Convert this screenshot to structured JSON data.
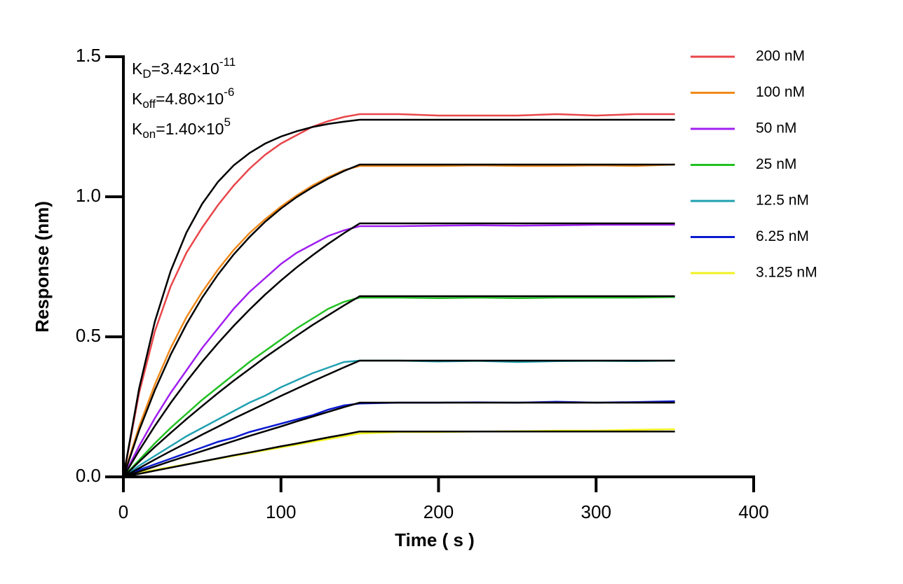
{
  "chart_data": {
    "type": "line",
    "annotations": [
      {
        "base": "K",
        "sub": "D",
        "text": "=3.42×10",
        "sup": "-11"
      },
      {
        "base": "K",
        "sub": "off",
        "text": "=4.80×10",
        "sup": "-6"
      },
      {
        "base": "K",
        "sub": "on",
        "text": "=1.40×10",
        "sup": "5"
      }
    ],
    "x_label": "Time ( s )",
    "y_label": "Response (nm)",
    "xlim": [
      0,
      400
    ],
    "xticks": [
      0,
      100,
      200,
      300,
      400
    ],
    "ylim": [
      0,
      1.5
    ],
    "yticks": [
      {
        "value": 0,
        "label": "0.0"
      },
      {
        "value": 0.5,
        "label": "0.5"
      },
      {
        "value": 1,
        "label": "1.0"
      },
      {
        "value": 1.5,
        "label": "1.5"
      }
    ],
    "legend": "right",
    "x": [
      0,
      10,
      20,
      30,
      40,
      50,
      60,
      70,
      80,
      90,
      100,
      110,
      120,
      130,
      140,
      150,
      175,
      200,
      225,
      250,
      275,
      300,
      325,
      350
    ],
    "series": [
      {
        "name": "200 nM",
        "color": "#e8464a",
        "values": [
          0,
          0.3,
          0.52,
          0.68,
          0.8,
          0.89,
          0.97,
          1.04,
          1.1,
          1.15,
          1.19,
          1.22,
          1.25,
          1.27,
          1.285,
          1.295,
          1.295,
          1.29,
          1.29,
          1.29,
          1.295,
          1.29,
          1.295,
          1.295
        ]
      },
      {
        "name": "100 nM",
        "color": "#f08a1c",
        "values": [
          0,
          0.18,
          0.33,
          0.46,
          0.57,
          0.66,
          0.74,
          0.81,
          0.87,
          0.92,
          0.965,
          1.005,
          1.04,
          1.07,
          1.095,
          1.11,
          1.11,
          1.11,
          1.112,
          1.11,
          1.11,
          1.112,
          1.11,
          1.115
        ]
      },
      {
        "name": "50 nM",
        "color": "#a020f0",
        "values": [
          0,
          0.11,
          0.21,
          0.3,
          0.38,
          0.46,
          0.53,
          0.6,
          0.66,
          0.71,
          0.76,
          0.8,
          0.83,
          0.86,
          0.88,
          0.895,
          0.895,
          0.897,
          0.898,
          0.897,
          0.898,
          0.9,
          0.9,
          0.9
        ]
      },
      {
        "name": "25 nM",
        "color": "#22c022",
        "values": [
          0,
          0.06,
          0.12,
          0.175,
          0.225,
          0.275,
          0.32,
          0.365,
          0.41,
          0.45,
          0.49,
          0.53,
          0.565,
          0.6,
          0.625,
          0.64,
          0.64,
          0.638,
          0.64,
          0.638,
          0.64,
          0.64,
          0.64,
          0.642
        ]
      },
      {
        "name": "12.5 nM",
        "color": "#1fa0b0",
        "values": [
          0,
          0.04,
          0.075,
          0.11,
          0.145,
          0.175,
          0.205,
          0.235,
          0.265,
          0.29,
          0.32,
          0.345,
          0.37,
          0.39,
          0.41,
          0.415,
          0.415,
          0.412,
          0.414,
          0.41,
          0.413,
          0.414,
          0.413,
          0.415
        ]
      },
      {
        "name": "6.25 nM",
        "color": "#0a1ad0",
        "values": [
          0,
          0.025,
          0.045,
          0.065,
          0.085,
          0.105,
          0.125,
          0.14,
          0.16,
          0.175,
          0.19,
          0.205,
          0.22,
          0.24,
          0.255,
          0.262,
          0.265,
          0.265,
          0.266,
          0.265,
          0.268,
          0.265,
          0.267,
          0.27
        ]
      },
      {
        "name": "3.125 nM",
        "color": "#f0f020",
        "values": [
          0,
          0.015,
          0.025,
          0.035,
          0.045,
          0.055,
          0.065,
          0.075,
          0.085,
          0.095,
          0.105,
          0.115,
          0.125,
          0.135,
          0.145,
          0.155,
          0.16,
          0.16,
          0.162,
          0.163,
          0.165,
          0.165,
          0.168,
          0.17
        ]
      }
    ],
    "fits": [
      {
        "color": "#000000",
        "values": [
          0,
          0.316,
          0.555,
          0.735,
          0.872,
          0.975,
          1.053,
          1.112,
          1.156,
          1.19,
          1.215,
          1.234,
          1.249,
          1.26,
          1.268,
          1.275,
          1.275,
          1.275,
          1.275,
          1.275,
          1.275,
          1.275,
          1.275,
          1.275
        ]
      },
      {
        "color": "#000000",
        "values": [
          0,
          0.166,
          0.31,
          0.436,
          0.545,
          0.64,
          0.722,
          0.794,
          0.856,
          0.911,
          0.958,
          0.999,
          1.034,
          1.065,
          1.092,
          1.115,
          1.115,
          1.115,
          1.115,
          1.115,
          1.115,
          1.115,
          1.115,
          1.115
        ]
      },
      {
        "color": "#000000",
        "values": [
          0,
          0.094,
          0.182,
          0.264,
          0.34,
          0.411,
          0.477,
          0.539,
          0.597,
          0.651,
          0.701,
          0.748,
          0.791,
          0.832,
          0.87,
          0.905,
          0.905,
          0.905,
          0.905,
          0.905,
          0.905,
          0.905,
          0.905,
          0.905
        ]
      },
      {
        "color": "#000000",
        "values": [
          0,
          0.054,
          0.107,
          0.157,
          0.206,
          0.253,
          0.299,
          0.343,
          0.385,
          0.427,
          0.466,
          0.504,
          0.542,
          0.577,
          0.612,
          0.645,
          0.645,
          0.645,
          0.645,
          0.645,
          0.645,
          0.645,
          0.645,
          0.645
        ]
      },
      {
        "color": "#000000",
        "values": [
          0,
          0.031,
          0.062,
          0.092,
          0.121,
          0.151,
          0.179,
          0.208,
          0.235,
          0.262,
          0.289,
          0.315,
          0.341,
          0.366,
          0.391,
          0.415,
          0.415,
          0.415,
          0.415,
          0.415,
          0.415,
          0.415,
          0.415,
          0.415
        ]
      },
      {
        "color": "#000000",
        "values": [
          0,
          0.019,
          0.037,
          0.056,
          0.074,
          0.092,
          0.11,
          0.128,
          0.146,
          0.163,
          0.18,
          0.198,
          0.215,
          0.232,
          0.249,
          0.265,
          0.265,
          0.265,
          0.265,
          0.265,
          0.265,
          0.265,
          0.265,
          0.265
        ]
      },
      {
        "color": "#000000",
        "values": [
          0,
          0.011,
          0.022,
          0.033,
          0.044,
          0.055,
          0.066,
          0.077,
          0.087,
          0.098,
          0.109,
          0.119,
          0.13,
          0.141,
          0.151,
          0.162,
          0.162,
          0.162,
          0.162,
          0.162,
          0.162,
          0.162,
          0.162,
          0.162
        ]
      }
    ]
  }
}
